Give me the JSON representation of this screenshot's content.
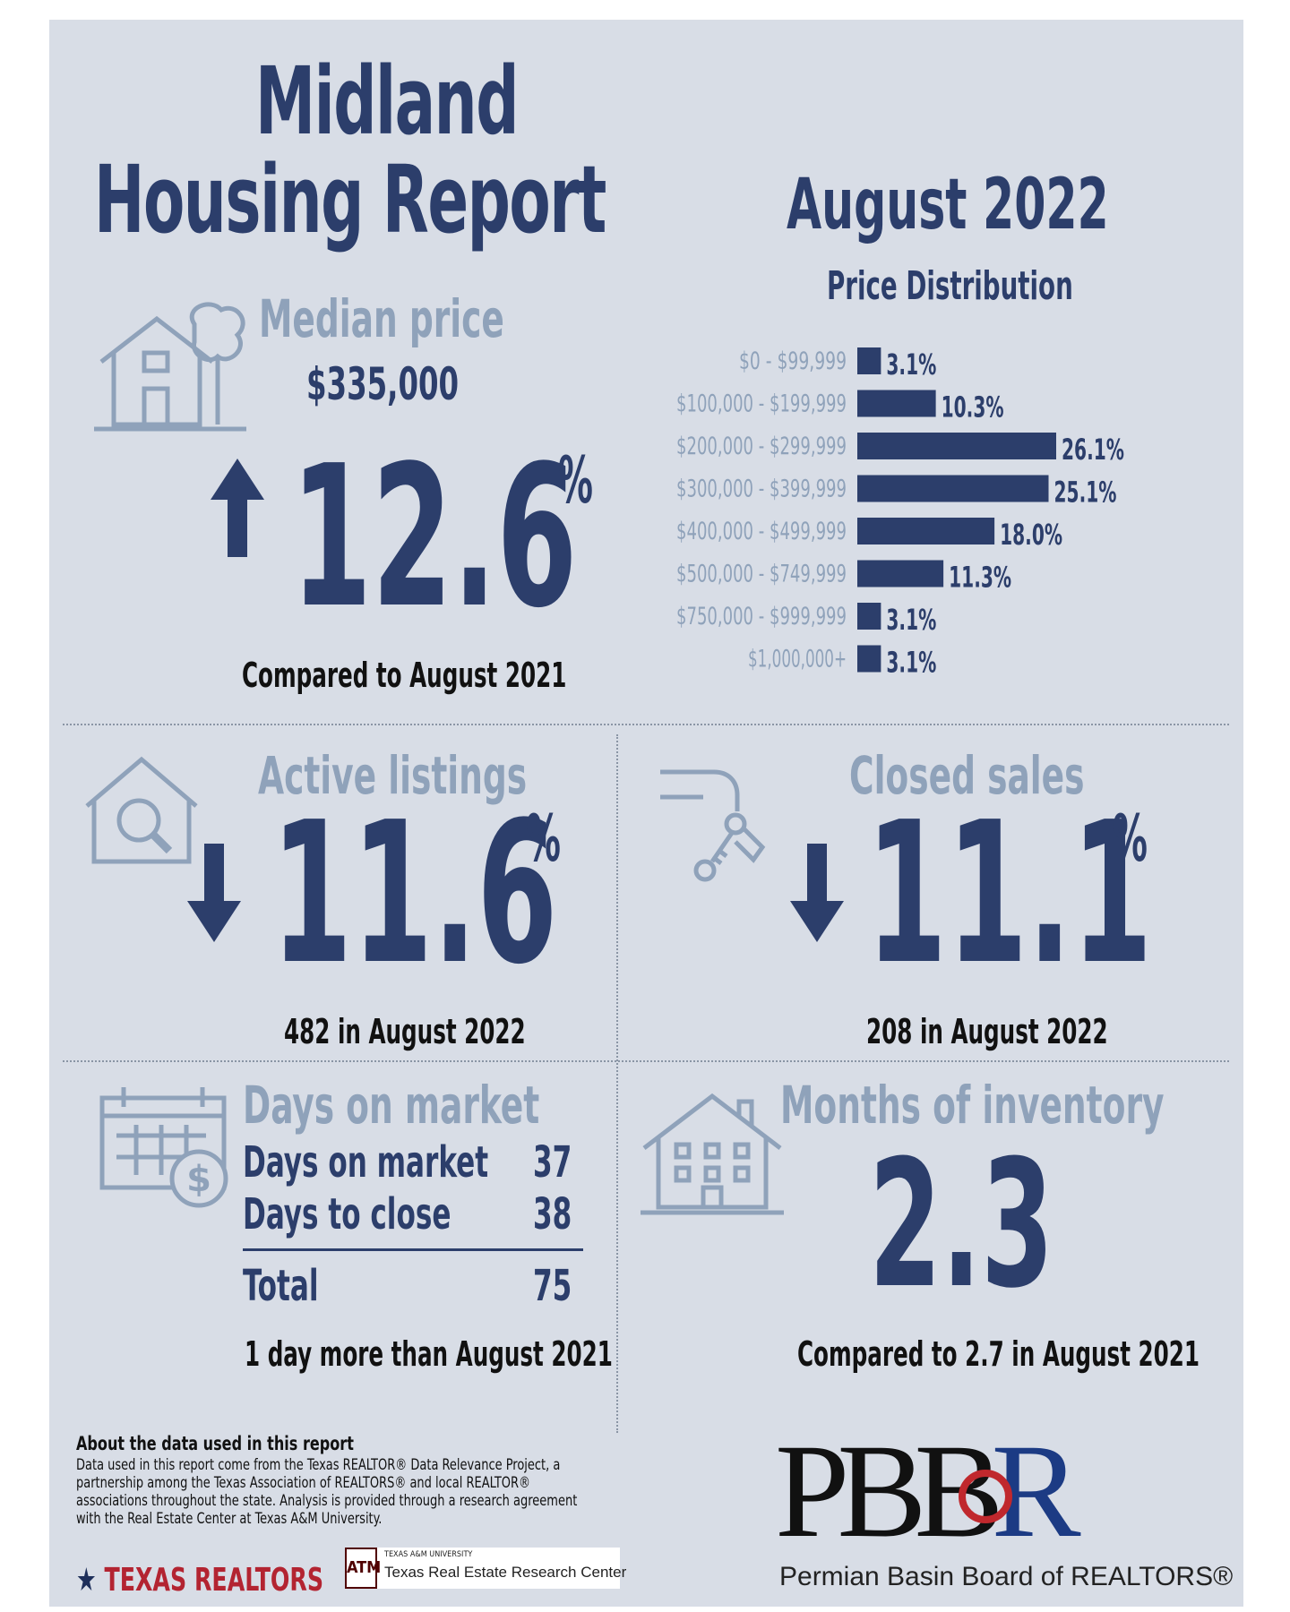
{
  "header": {
    "title_line1": "Midland",
    "title_line2": "Housing Report",
    "month": "August 2022"
  },
  "median_price": {
    "title": "Median price",
    "value": "$335,000",
    "change": "12.6",
    "unit": "%",
    "direction": "up",
    "caption": "Compared to August 2021"
  },
  "active_listings": {
    "title": "Active listings",
    "change": "11.6",
    "unit": "%",
    "direction": "down",
    "caption": "482 in August 2022"
  },
  "closed_sales": {
    "title": "Closed sales",
    "change": "11.1",
    "unit": "%",
    "direction": "down",
    "caption": "208 in August 2022"
  },
  "days_on_market": {
    "title": "Days on market",
    "rows": [
      {
        "label": "Days on market",
        "value": "37"
      },
      {
        "label": "Days to close",
        "value": "38"
      }
    ],
    "total_label": "Total",
    "total_value": "75",
    "caption": "1 day more than August 2021"
  },
  "months_of_inventory": {
    "title": "Months of inventory",
    "value": "2.3",
    "caption": "Compared to 2.7 in August 2021"
  },
  "about": {
    "heading": "About the data used in this report",
    "body": "Data used in this report come from the Texas REALTOR® Data Relevance Project, a partnership among the Texas Association of REALTORS® and local REALTOR® associations throughout the state. Analysis is provided through a research agreement with the Real Estate Center at Texas A&M University."
  },
  "logos": {
    "texas_realtors": "TEXAS REALTORS",
    "tamu_small": "TEXAS A&M UNIVERSITY",
    "tamu_name": "Texas Real Estate Research Center",
    "pbbr_mark": "PBBR",
    "pbbr_name": "Permian Basin Board of REALTORS®"
  },
  "colors": {
    "background": "#d8dde6",
    "navy": "#2c3e6b",
    "muted": "#8fa2ba"
  },
  "chart_data": {
    "type": "bar",
    "orientation": "horizontal",
    "title": "Price Distribution",
    "categories": [
      "$0 - $99,999",
      "$100,000 - $199,999",
      "$200,000 - $299,999",
      "$300,000 - $399,999",
      "$400,000 - $499,999",
      "$500,000 - $749,999",
      "$750,000 - $999,999",
      "$1,000,000+"
    ],
    "values": [
      3.1,
      10.3,
      26.1,
      25.1,
      18.0,
      11.3,
      3.1,
      3.1
    ],
    "value_labels": [
      "3.1%",
      "10.3%",
      "26.1%",
      "25.1%",
      "18.0%",
      "11.3%",
      "3.1%",
      "3.1%"
    ],
    "unit": "%",
    "grid": false,
    "legend": "none"
  }
}
